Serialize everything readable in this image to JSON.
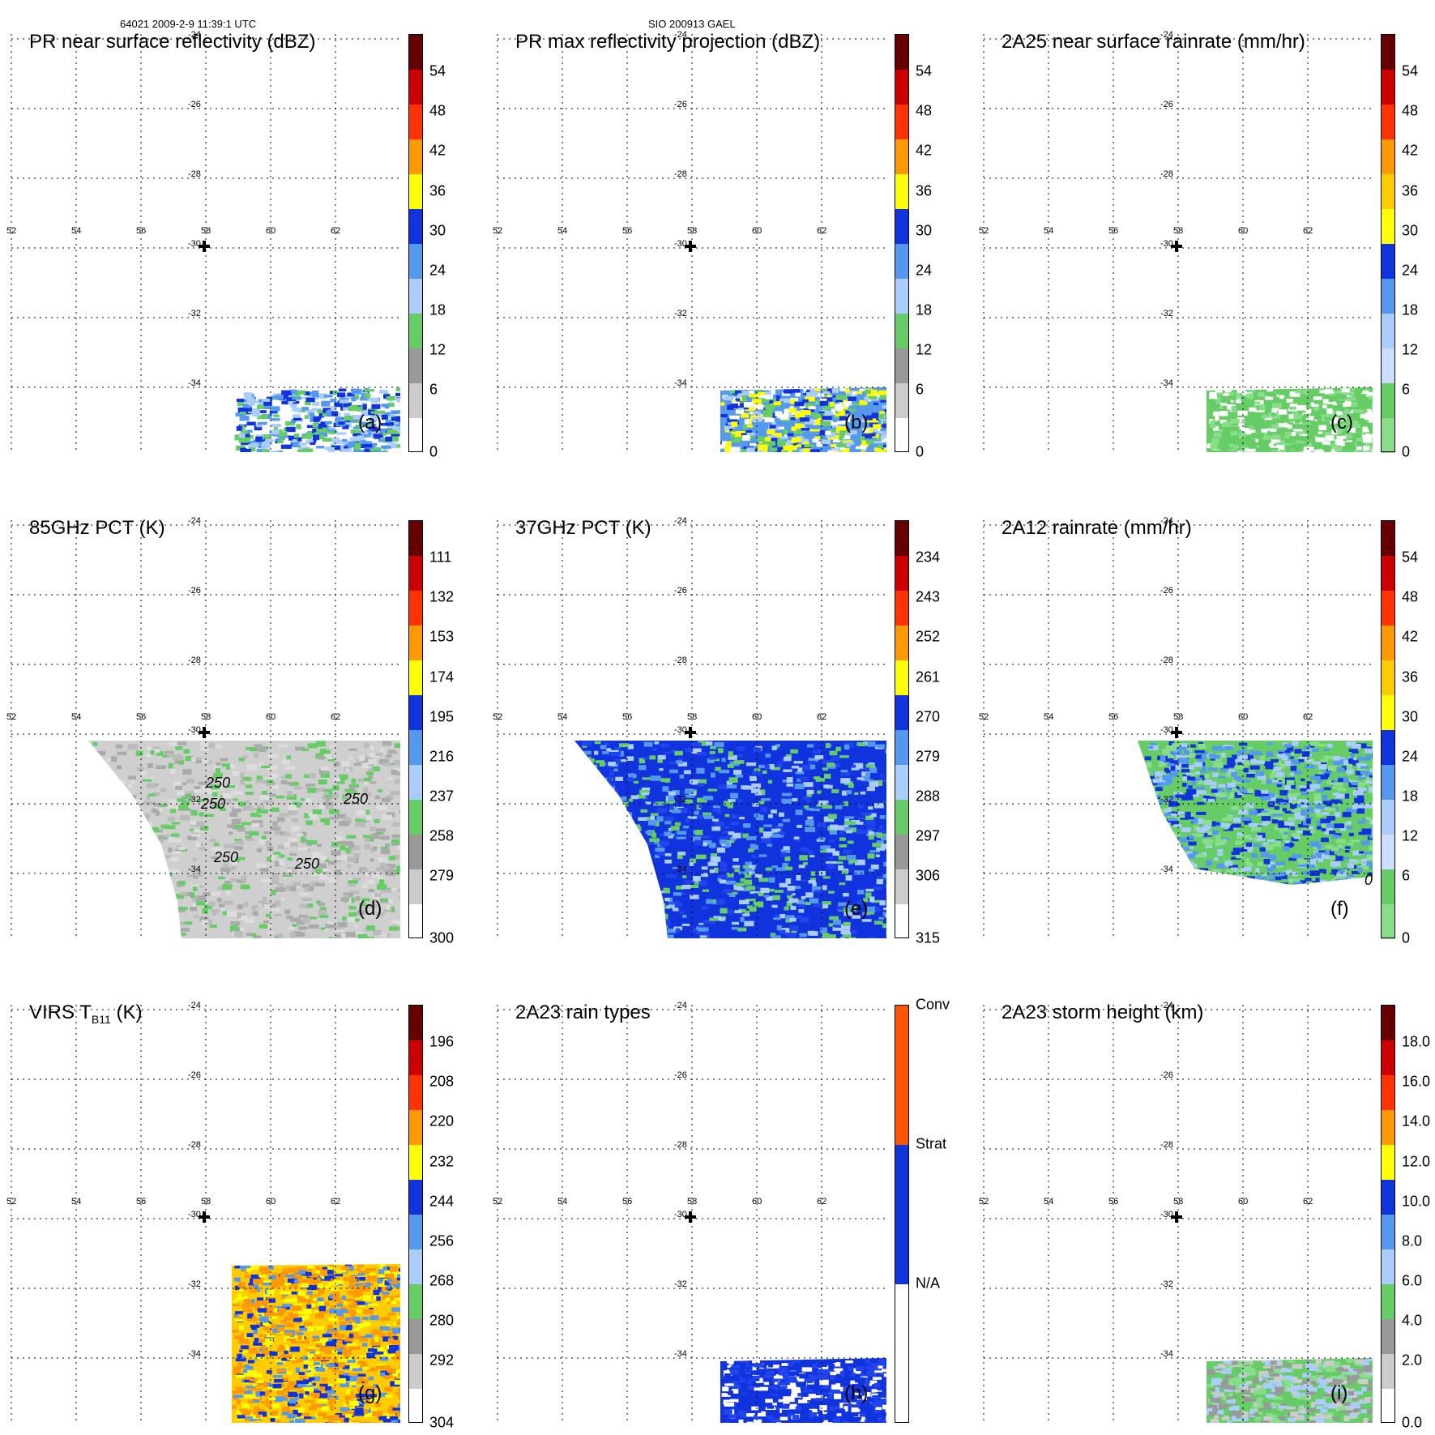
{
  "header": {
    "left": "64021 2009-2-9 11:39:1 UTC",
    "center": "SIO 200913 GAEL"
  },
  "grid": {
    "lon_labels": [
      "52",
      "54",
      "56",
      "58",
      "60",
      "62"
    ],
    "lat_labels": [
      "-24",
      "-26",
      "-28",
      "-30",
      "-32",
      "-34"
    ],
    "marker": "cross-icon"
  },
  "chart_data": [
    {
      "id": "a",
      "type": "heatmap",
      "title": "PR near surface reflectivity (dBZ)",
      "label": "(a)",
      "colorbar": {
        "ticks": [
          "54",
          "48",
          "42",
          "36",
          "30",
          "24",
          "18",
          "12",
          "6",
          "0"
        ],
        "range": [
          0,
          60
        ],
        "colors": [
          "#ffffff",
          "#cccccc",
          "#999999",
          "#66cc66",
          "#aaccff",
          "#5599ee",
          "#1133dd",
          "#ffff00",
          "#ff9900",
          "#ff3300",
          "#cc0000",
          "#660000"
        ]
      }
    },
    {
      "id": "b",
      "type": "heatmap",
      "title": "PR max reflectivity projection (dBZ)",
      "label": "(b)",
      "colorbar": {
        "ticks": [
          "54",
          "48",
          "42",
          "36",
          "30",
          "24",
          "18",
          "12",
          "6",
          "0"
        ],
        "range": [
          0,
          60
        ],
        "colors": [
          "#ffffff",
          "#cccccc",
          "#999999",
          "#66cc66",
          "#aaccff",
          "#5599ee",
          "#1133dd",
          "#ffff00",
          "#ff9900",
          "#ff3300",
          "#cc0000",
          "#660000"
        ]
      }
    },
    {
      "id": "c",
      "type": "heatmap",
      "title": "2A25 near surface rainrate (mm/hr)",
      "label": "(c)",
      "colorbar": {
        "ticks": [
          "54",
          "48",
          "42",
          "36",
          "30",
          "24",
          "18",
          "12",
          "6",
          "0"
        ],
        "range": [
          0,
          60
        ],
        "colors": [
          "#88dd88",
          "#66cc66",
          "#ccddff",
          "#aaccff",
          "#5599ee",
          "#1133dd",
          "#ffff00",
          "#ffcc00",
          "#ff9900",
          "#ff3300",
          "#cc0000",
          "#660000"
        ]
      }
    },
    {
      "id": "d",
      "type": "heatmap",
      "title": "85GHz PCT (K)",
      "label": "(d)",
      "contour_label": "250",
      "colorbar": {
        "ticks": [
          "111",
          "132",
          "153",
          "174",
          "195",
          "216",
          "237",
          "258",
          "279",
          "300"
        ],
        "range": [
          300,
          90
        ],
        "colors": [
          "#ffffff",
          "#cccccc",
          "#999999",
          "#66cc66",
          "#aaccff",
          "#5599ee",
          "#1133dd",
          "#ffff00",
          "#ff9900",
          "#ff3300",
          "#cc0000",
          "#660000"
        ]
      }
    },
    {
      "id": "e",
      "type": "heatmap",
      "title": "37GHz PCT (K)",
      "label": "(e)",
      "colorbar": {
        "ticks": [
          "234",
          "243",
          "252",
          "261",
          "270",
          "279",
          "288",
          "297",
          "306",
          "315"
        ],
        "range": [
          315,
          225
        ],
        "colors": [
          "#ffffff",
          "#cccccc",
          "#999999",
          "#66cc66",
          "#aaccff",
          "#5599ee",
          "#1133dd",
          "#ffff00",
          "#ff9900",
          "#ff3300",
          "#cc0000",
          "#660000"
        ]
      }
    },
    {
      "id": "f",
      "type": "heatmap",
      "title": "2A12 rainrate (mm/hr)",
      "label": "(f)",
      "contour_label": "0",
      "colorbar": {
        "ticks": [
          "54",
          "48",
          "42",
          "36",
          "30",
          "24",
          "18",
          "12",
          "6",
          "0"
        ],
        "range": [
          0,
          60
        ],
        "colors": [
          "#88dd88",
          "#66cc66",
          "#ccddff",
          "#aaccff",
          "#5599ee",
          "#1133dd",
          "#ffff00",
          "#ffcc00",
          "#ff9900",
          "#ff3300",
          "#cc0000",
          "#660000"
        ]
      }
    },
    {
      "id": "g",
      "type": "heatmap",
      "title": "VIRS T",
      "title_sub": "B11",
      "title_tail": " (K)",
      "label": "(g)",
      "colorbar": {
        "ticks": [
          "196",
          "208",
          "220",
          "232",
          "244",
          "256",
          "268",
          "280",
          "292",
          "304"
        ],
        "range": [
          304,
          184
        ],
        "colors": [
          "#ffffff",
          "#cccccc",
          "#999999",
          "#66cc66",
          "#aaccff",
          "#5599ee",
          "#1133dd",
          "#ffff00",
          "#ff9900",
          "#ff3300",
          "#cc0000",
          "#660000"
        ]
      }
    },
    {
      "id": "h",
      "type": "heatmap",
      "title": "2A23 rain types",
      "label": "(h)",
      "colorbar": {
        "ticks": [
          "Conv",
          "Strat",
          "N/A"
        ],
        "categorical": true,
        "colors": [
          "#ffffff",
          "#1133dd",
          "#ff5500"
        ]
      }
    },
    {
      "id": "i",
      "type": "heatmap",
      "title": "2A23 storm height (km)",
      "label": "(i)",
      "colorbar": {
        "ticks": [
          "18.0",
          "16.0",
          "14.0",
          "12.0",
          "10.0",
          "8.0",
          "6.0",
          "4.0",
          "2.0",
          "0.0"
        ],
        "range": [
          0,
          20
        ],
        "colors": [
          "#ffffff",
          "#cccccc",
          "#999999",
          "#66cc66",
          "#aaccff",
          "#5599ee",
          "#1133dd",
          "#ffff00",
          "#ff9900",
          "#ff3300",
          "#cc0000",
          "#660000"
        ]
      }
    }
  ]
}
